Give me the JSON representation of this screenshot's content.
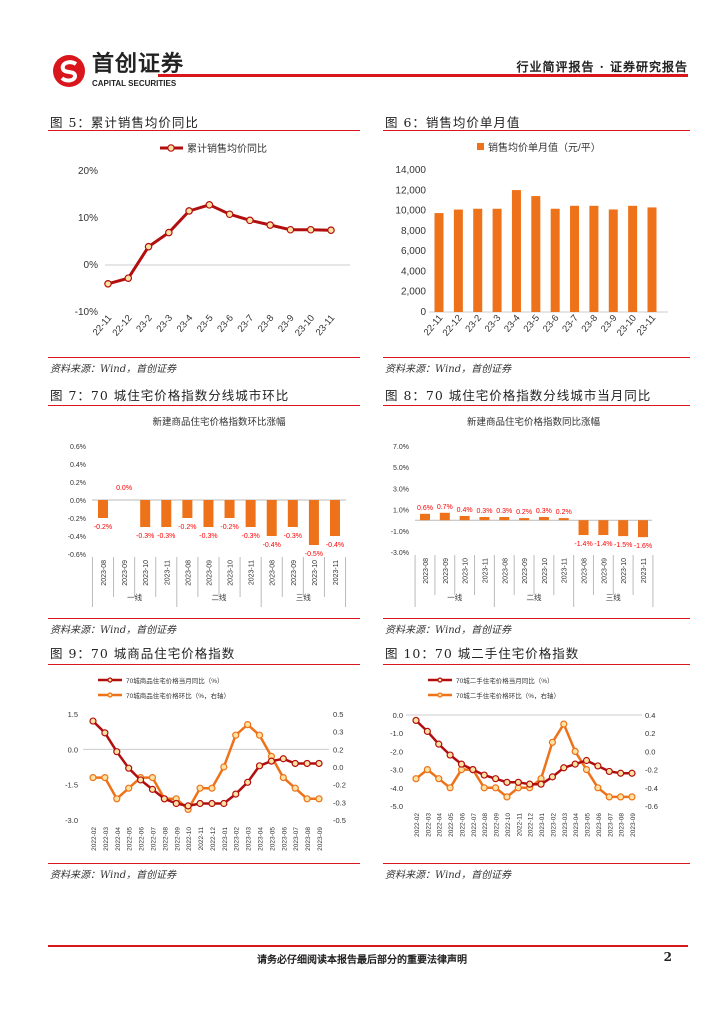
{
  "header": {
    "logo_cn": "首创证券",
    "logo_en": "CAPITAL SECURITIES",
    "report_type": "行业简评报告 · 证券研究报告"
  },
  "figures": {
    "f5": {
      "title": "图 5：累计销售均价同比",
      "source": "资料来源：Wind，首创证券"
    },
    "f6": {
      "title": "图 6：销售均价单月值",
      "source": "资料来源：Wind，首创证券"
    },
    "f7": {
      "title": "图 7：70 城住宅价格指数分线城市环比",
      "source": "资料来源：Wind，首创证券"
    },
    "f8": {
      "title": "图 8：70 城住宅价格指数分线城市当月同比",
      "source": "资料来源：Wind，首创证券"
    },
    "f9": {
      "title": "图 9：70 城商品住宅价格指数",
      "source": "资料来源：Wind，首创证券"
    },
    "f10": {
      "title": "图 10：70 城二手住宅价格指数",
      "source": "资料来源：Wind，首创证券"
    }
  },
  "chart_data": [
    {
      "id": "f5",
      "type": "line",
      "title": "",
      "legend": [
        "累计销售均价同比"
      ],
      "categories": [
        "22-11",
        "22-12",
        "23-2",
        "23-3",
        "23-4",
        "23-5",
        "23-6",
        "23-7",
        "23-8",
        "23-9",
        "23-10",
        "23-11"
      ],
      "series": [
        {
          "name": "累计销售均价同比",
          "values": [
            -4.0,
            -2.8,
            3.9,
            6.9,
            11.5,
            12.8,
            10.8,
            9.5,
            8.5,
            7.5,
            7.5,
            7.4
          ],
          "color": "#b30e0e"
        }
      ],
      "ylim": [
        -10,
        20
      ],
      "yticks": [
        "20%",
        "10%",
        "0%",
        "-10%"
      ],
      "ylabel": "",
      "xlabel": ""
    },
    {
      "id": "f6",
      "type": "bar",
      "title": "",
      "legend": [
        "销售均价单月值（元/平）"
      ],
      "categories": [
        "22-11",
        "22-12",
        "23-2",
        "23-3",
        "23-4",
        "23-5",
        "23-6",
        "23-7",
        "23-8",
        "23-9",
        "23-10",
        "23-11"
      ],
      "values": [
        9750,
        10100,
        10180,
        10180,
        12020,
        11430,
        10180,
        10470,
        10470,
        10110,
        10470,
        10310
      ],
      "color": "#ed7219",
      "ylim": [
        0,
        14000
      ],
      "yticks": [
        "14,000",
        "12,000",
        "10,000",
        "8,000",
        "6,000",
        "4,000",
        "2,000",
        "0"
      ]
    },
    {
      "id": "f7",
      "type": "bar",
      "title": "新建商品住宅价格指数环比涨幅",
      "categories": [
        "2023-08",
        "2023-09",
        "2023-10",
        "2023-11",
        "2023-08",
        "2023-09",
        "2023-10",
        "2023-11",
        "2023-08",
        "2023-09",
        "2023-10",
        "2023-11"
      ],
      "groups": [
        "一线",
        "二线",
        "三线"
      ],
      "values": [
        -0.2,
        0.0,
        -0.3,
        -0.3,
        -0.2,
        -0.3,
        -0.2,
        -0.3,
        -0.4,
        -0.3,
        -0.5,
        -0.4
      ],
      "data_labels": [
        "-0.2%",
        "0.0%",
        "-0.3%",
        "-0.3%",
        "-0.2%",
        "-0.3%",
        "-0.2%",
        "-0.3%",
        "-0.4%",
        "-0.3%",
        "-0.5%",
        "-0.4%"
      ],
      "color": "#ed7219",
      "label_color": "#ff0000",
      "ylim": [
        -0.6,
        0.6
      ],
      "yticks": [
        "0.6%",
        "0.4%",
        "0.2%",
        "0.0%",
        "-0.2%",
        "-0.4%",
        "-0.6%"
      ]
    },
    {
      "id": "f8",
      "type": "bar",
      "title": "新建商品住宅价格指数同比涨幅",
      "categories": [
        "2023-08",
        "2023-09",
        "2023-10",
        "2023-11",
        "2023-08",
        "2023-09",
        "2023-10",
        "2023-11",
        "2023-08",
        "2023-09",
        "2023-10",
        "2023-11"
      ],
      "groups": [
        "一线",
        "二线",
        "三线"
      ],
      "values": [
        0.6,
        0.7,
        0.4,
        0.3,
        0.3,
        0.2,
        0.3,
        0.2,
        -1.4,
        -1.4,
        -1.5,
        -1.6
      ],
      "data_labels": [
        "0.6%",
        "0.7%",
        "0.4%",
        "0.3%",
        "0.3%",
        "0.2%",
        "0.3%",
        "0.2%",
        "-1.4%",
        "-1.4%",
        "-1.5%",
        "-1.6%"
      ],
      "color": "#ed7219",
      "label_color": "#ff0000",
      "ylim": [
        -3.0,
        7.0
      ],
      "yticks": [
        "7.0%",
        "5.0%",
        "3.0%",
        "1.0%",
        "-1.0%",
        "-3.0%"
      ]
    },
    {
      "id": "f9",
      "type": "line",
      "title": "",
      "categories": [
        "2022-02",
        "2022-03",
        "2022-04",
        "2022-05",
        "2022-06",
        "2022-07",
        "2022-08",
        "2022-09",
        "2022-10",
        "2022-11",
        "2022-12",
        "2023-01",
        "2023-02",
        "2023-03",
        "2023-04",
        "2023-05",
        "2023-06",
        "2023-07",
        "2023-08",
        "2023-09"
      ],
      "series": [
        {
          "name": "70城商品住宅价格当月同比（%）",
          "axis": "left",
          "color": "#b30e0e",
          "values": [
            1.2,
            0.7,
            -0.1,
            -0.8,
            -1.3,
            -1.7,
            -2.1,
            -2.3,
            -2.4,
            -2.3,
            -2.3,
            -2.3,
            -1.9,
            -1.4,
            -0.7,
            -0.5,
            -0.4,
            -0.6,
            -0.6,
            -0.6
          ]
        },
        {
          "name": "70城商品住宅价格环比（%，右轴）",
          "axis": "right",
          "color": "#ed7219",
          "values": [
            -0.1,
            -0.1,
            -0.3,
            -0.2,
            -0.1,
            -0.1,
            -0.3,
            -0.3,
            -0.4,
            -0.2,
            -0.2,
            0.0,
            0.3,
            0.4,
            0.3,
            0.1,
            -0.1,
            -0.2,
            -0.3,
            -0.3
          ]
        }
      ],
      "ylim": [
        -3.0,
        1.5
      ],
      "yticks": [
        "1.5",
        "0.0",
        "-1.5",
        "-3.0"
      ],
      "y2lim": [
        -0.5,
        0.5
      ],
      "y2ticks": [
        "0.5",
        "0.3",
        "0.2",
        "0.0",
        "-0.2",
        "-0.3",
        "-0.5"
      ]
    },
    {
      "id": "f10",
      "type": "line",
      "title": "",
      "categories": [
        "2022-02",
        "2022-03",
        "2022-04",
        "2022-05",
        "2022-06",
        "2022-07",
        "2022-08",
        "2022-09",
        "2022-10",
        "2022-11",
        "2022-12",
        "2023-01",
        "2023-02",
        "2023-03",
        "2023-04",
        "2023-05",
        "2023-06",
        "2023-07",
        "2023-08",
        "2023-09"
      ],
      "series": [
        {
          "name": "70城二手住宅价格当月同比（%）",
          "axis": "left",
          "color": "#b30e0e",
          "values": [
            -0.3,
            -0.9,
            -1.6,
            -2.2,
            -2.7,
            -3.0,
            -3.3,
            -3.5,
            -3.7,
            -3.7,
            -3.8,
            -3.8,
            -3.4,
            -2.9,
            -2.7,
            -2.5,
            -2.8,
            -3.1,
            -3.2,
            -3.2
          ]
        },
        {
          "name": "70城二手住宅价格环比（%，右轴）",
          "axis": "right",
          "color": "#ed7219",
          "values": [
            -0.3,
            -0.2,
            -0.3,
            -0.4,
            -0.2,
            -0.2,
            -0.4,
            -0.4,
            -0.5,
            -0.4,
            -0.4,
            -0.3,
            0.1,
            0.3,
            0.0,
            -0.2,
            -0.4,
            -0.5,
            -0.5,
            -0.5
          ]
        }
      ],
      "ylim": [
        -5.0,
        0.0
      ],
      "yticks": [
        "0.0",
        "-1.0",
        "-2.0",
        "-3.0",
        "-4.0",
        "-5.0"
      ],
      "y2lim": [
        -0.6,
        0.4
      ],
      "y2ticks": [
        "0.4",
        "0.2",
        "0.0",
        "-0.2",
        "-0.4",
        "-0.6"
      ]
    }
  ],
  "footer": {
    "disclaimer": "请务必仔细阅读本报告最后部分的重要法律声明",
    "page": "2"
  }
}
